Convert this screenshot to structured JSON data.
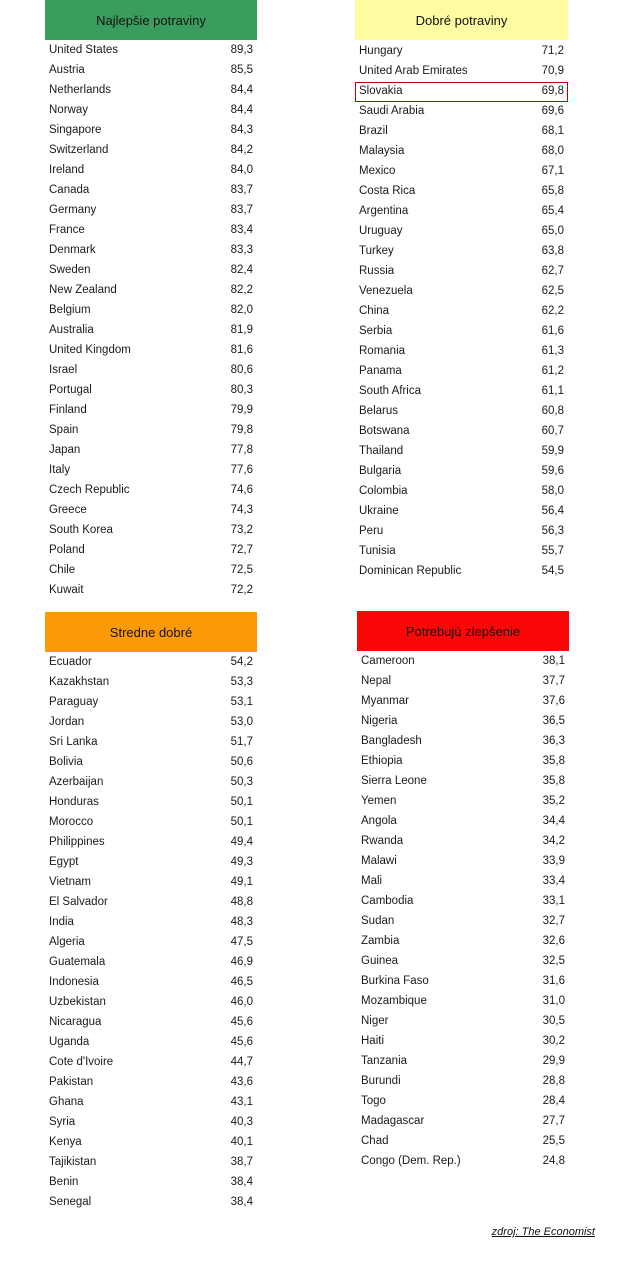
{
  "sections": [
    {
      "title": "Najlepšie potraviny",
      "color": "#3a9d5d",
      "rows": [
        {
          "name": "United States",
          "value": "89,3"
        },
        {
          "name": "Austria",
          "value": "85,5"
        },
        {
          "name": "Netherlands",
          "value": "84,4"
        },
        {
          "name": "Norway",
          "value": "84,4"
        },
        {
          "name": "Singapore",
          "value": "84,3"
        },
        {
          "name": "Switzerland",
          "value": "84,2"
        },
        {
          "name": "Ireland",
          "value": "84,0"
        },
        {
          "name": "Canada",
          "value": "83,7"
        },
        {
          "name": "Germany",
          "value": "83,7"
        },
        {
          "name": "France",
          "value": "83,4"
        },
        {
          "name": "Denmark",
          "value": "83,3"
        },
        {
          "name": "Sweden",
          "value": "82,4"
        },
        {
          "name": "New Zealand",
          "value": "82,2"
        },
        {
          "name": "Belgium",
          "value": "82,0"
        },
        {
          "name": "Australia",
          "value": "81,9"
        },
        {
          "name": "United Kingdom",
          "value": "81,6"
        },
        {
          "name": "Israel",
          "value": "80,6"
        },
        {
          "name": "Portugal",
          "value": "80,3"
        },
        {
          "name": "Finland",
          "value": "79,9"
        },
        {
          "name": "Spain",
          "value": "79,8"
        },
        {
          "name": "Japan",
          "value": "77,8"
        },
        {
          "name": "Italy",
          "value": "77,6"
        },
        {
          "name": "Czech Republic",
          "value": "74,6"
        },
        {
          "name": "Greece",
          "value": "74,3"
        },
        {
          "name": "South Korea",
          "value": "73,2"
        },
        {
          "name": "Poland",
          "value": "72,7"
        },
        {
          "name": "Chile",
          "value": "72,5"
        },
        {
          "name": "Kuwait",
          "value": "72,2"
        }
      ]
    },
    {
      "title": "Dobré potraviny",
      "color": "#fdfca0",
      "rows": [
        {
          "name": "Hungary",
          "value": "71,2"
        },
        {
          "name": "United Arab Emirates",
          "value": "70,9"
        },
        {
          "name": "Slovakia",
          "value": "69,8",
          "highlight": true
        },
        {
          "name": "Saudi Arabia",
          "value": "69,6"
        },
        {
          "name": "Brazil",
          "value": "68,1"
        },
        {
          "name": "Malaysia",
          "value": "68,0"
        },
        {
          "name": "Mexico",
          "value": "67,1"
        },
        {
          "name": "Costa Rica",
          "value": "65,8"
        },
        {
          "name": "Argentina",
          "value": "65,4"
        },
        {
          "name": "Uruguay",
          "value": "65,0"
        },
        {
          "name": "Turkey",
          "value": "63,8"
        },
        {
          "name": "Russia",
          "value": "62,7"
        },
        {
          "name": "Venezuela",
          "value": "62,5"
        },
        {
          "name": "China",
          "value": "62,2"
        },
        {
          "name": "Serbia",
          "value": "61,6"
        },
        {
          "name": "Romania",
          "value": "61,3"
        },
        {
          "name": "Panama",
          "value": "61,2"
        },
        {
          "name": "South Africa",
          "value": "61,1"
        },
        {
          "name": "Belarus",
          "value": "60,8"
        },
        {
          "name": "Botswana",
          "value": "60,7"
        },
        {
          "name": "Thailand",
          "value": "59,9"
        },
        {
          "name": "Bulgaria",
          "value": "59,6"
        },
        {
          "name": "Colombia",
          "value": "58,0"
        },
        {
          "name": "Ukraine",
          "value": "56,4"
        },
        {
          "name": "Peru",
          "value": "56,3"
        },
        {
          "name": "Tunisia",
          "value": "55,7"
        },
        {
          "name": "Dominican Republic",
          "value": "54,5"
        }
      ]
    },
    {
      "title": "Stredne dobré",
      "color": "#fb9a06",
      "rows": [
        {
          "name": "Ecuador",
          "value": "54,2"
        },
        {
          "name": "Kazakhstan",
          "value": "53,3"
        },
        {
          "name": "Paraguay",
          "value": "53,1"
        },
        {
          "name": "Jordan",
          "value": "53,0"
        },
        {
          "name": "Sri Lanka",
          "value": "51,7"
        },
        {
          "name": "Bolivia",
          "value": "50,6"
        },
        {
          "name": "Azerbaijan",
          "value": "50,3"
        },
        {
          "name": "Honduras",
          "value": "50,1"
        },
        {
          "name": "Morocco",
          "value": "50,1"
        },
        {
          "name": "Philippines",
          "value": "49,4"
        },
        {
          "name": "Egypt",
          "value": "49,3"
        },
        {
          "name": "Vietnam",
          "value": "49,1"
        },
        {
          "name": "El Salvador",
          "value": "48,8"
        },
        {
          "name": "India",
          "value": "48,3"
        },
        {
          "name": "Algeria",
          "value": "47,5"
        },
        {
          "name": "Guatemala",
          "value": "46,9"
        },
        {
          "name": "Indonesia",
          "value": "46,5"
        },
        {
          "name": "Uzbekistan",
          "value": "46,0"
        },
        {
          "name": "Nicaragua",
          "value": "45,6"
        },
        {
          "name": "Uganda",
          "value": "45,6"
        },
        {
          "name": "Cote d'Ivoire",
          "value": "44,7"
        },
        {
          "name": "Pakistan",
          "value": "43,6"
        },
        {
          "name": "Ghana",
          "value": "43,1"
        },
        {
          "name": "Syria",
          "value": "40,3"
        },
        {
          "name": "Kenya",
          "value": "40,1"
        },
        {
          "name": "Tajikistan",
          "value": "38,7"
        },
        {
          "name": "Benin",
          "value": "38,4"
        },
        {
          "name": "Senegal",
          "value": "38,4"
        }
      ]
    },
    {
      "title": "Potrebujú zlepšenie",
      "color": "#fb0707",
      "rows": [
        {
          "name": "Cameroon",
          "value": "38,1"
        },
        {
          "name": "Nepal",
          "value": "37,7"
        },
        {
          "name": "Myanmar",
          "value": "37,6"
        },
        {
          "name": "Nigeria",
          "value": "36,5"
        },
        {
          "name": "Bangladesh",
          "value": "36,3"
        },
        {
          "name": "Ethiopia",
          "value": "35,8"
        },
        {
          "name": "Sierra Leone",
          "value": "35,8"
        },
        {
          "name": "Yemen",
          "value": "35,2"
        },
        {
          "name": "Angola",
          "value": "34,4"
        },
        {
          "name": "Rwanda",
          "value": "34,2"
        },
        {
          "name": "Malawi",
          "value": "33,9"
        },
        {
          "name": "Mali",
          "value": "33,4"
        },
        {
          "name": "Cambodia",
          "value": "33,1"
        },
        {
          "name": "Sudan",
          "value": "32,7"
        },
        {
          "name": "Zambia",
          "value": "32,6"
        },
        {
          "name": "Guinea",
          "value": "32,5"
        },
        {
          "name": "Burkina Faso",
          "value": "31,6"
        },
        {
          "name": "Mozambique",
          "value": "31,0"
        },
        {
          "name": "Niger",
          "value": "30,5"
        },
        {
          "name": "Haiti",
          "value": "30,2"
        },
        {
          "name": "Tanzania",
          "value": "29,9"
        },
        {
          "name": "Burundi",
          "value": "28,8"
        },
        {
          "name": "Togo",
          "value": "28,4"
        },
        {
          "name": "Madagascar",
          "value": "27,7"
        },
        {
          "name": "Chad",
          "value": "25,5"
        },
        {
          "name": "Congo (Dem. Rep.)",
          "value": "24,8"
        }
      ]
    }
  ],
  "source": "zdroj: The Economist"
}
